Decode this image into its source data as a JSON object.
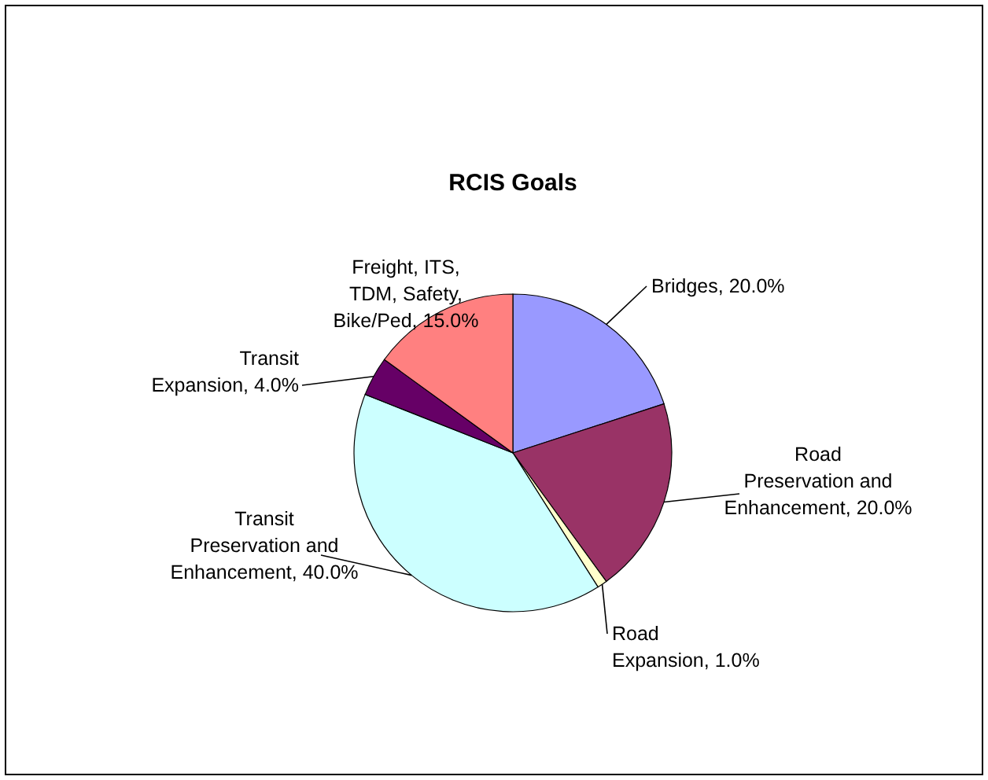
{
  "chart_data": {
    "type": "pie",
    "title": "RCIS Goals",
    "categories": [
      "Bridges",
      "Road Preservation and Enhancement",
      "Road Expansion",
      "Transit Preservation and Enhancement",
      "Transit Expansion",
      "Freight, ITS, TDM, Safety, Bike/Ped"
    ],
    "values": [
      20,
      20,
      1,
      40,
      4,
      15
    ],
    "value_labels": [
      "20.0%",
      "20.0%",
      "1.0%",
      "40.0%",
      "4.0%",
      "15.0%"
    ],
    "colors": [
      "#9999ff",
      "#993366",
      "#ffffcc",
      "#ccffff",
      "#660066",
      "#ff8080"
    ]
  }
}
